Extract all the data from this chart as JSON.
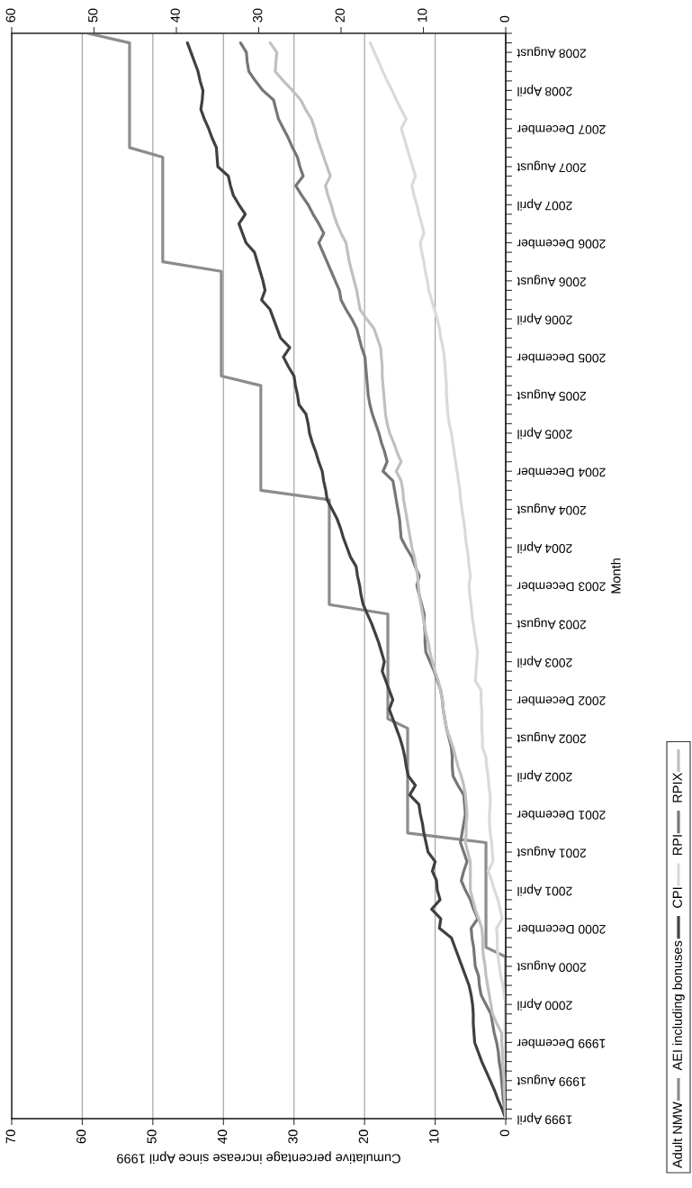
{
  "chart_data": {
    "type": "line",
    "orientation": "horizontal",
    "xlabel": "Cumulative percentage increase since April 1999",
    "ylabel": "Month",
    "categories": [
      null,
      null,
      "2008 August",
      null,
      null,
      null,
      "2008 April",
      null,
      null,
      null,
      "2007 December",
      null,
      null,
      null,
      "2007 August",
      null,
      null,
      null,
      "2007 April",
      null,
      null,
      null,
      "2006 December",
      null,
      null,
      null,
      "2006 August",
      null,
      null,
      null,
      "2006 April",
      null,
      null,
      null,
      "2005 December",
      null,
      null,
      null,
      "2005 August",
      null,
      null,
      null,
      "2005 April",
      null,
      null,
      null,
      "2004 December",
      null,
      null,
      null,
      "2004 August",
      null,
      null,
      null,
      "2004 April",
      null,
      null,
      null,
      "2003 December",
      null,
      null,
      null,
      "2003 August",
      null,
      null,
      null,
      "2003 April",
      null,
      null,
      null,
      "2002 December",
      null,
      null,
      null,
      "2002 August",
      null,
      null,
      null,
      "2002 April",
      null,
      null,
      null,
      "2001 December",
      null,
      null,
      null,
      "2001 August",
      null,
      null,
      null,
      "2001 April",
      null,
      null,
      null,
      "2000 December",
      null,
      null,
      null,
      "2000 August",
      null,
      null,
      null,
      "2000 April",
      null,
      null,
      null,
      "1999 December",
      null,
      null,
      null,
      "1999 August",
      null,
      null,
      null,
      "1999 April"
    ],
    "xlim": [
      70,
      0
    ],
    "xticks": [
      70,
      60,
      50,
      40,
      30,
      20,
      10,
      0
    ],
    "x2lim": [
      60,
      0
    ],
    "x2ticks": [
      60,
      50,
      40,
      30,
      20,
      10,
      0
    ],
    "grid": "x",
    "legend": "right",
    "series": [
      {
        "name": "Adult NMW",
        "color": "#8c8c8c",
        "values": [
          59.2,
          53.3,
          53.3,
          53.3,
          53.3,
          53.3,
          53.3,
          53.3,
          53.3,
          53.3,
          53.3,
          53.3,
          53.3,
          48.6,
          48.6,
          48.6,
          48.6,
          48.6,
          48.6,
          48.6,
          48.6,
          48.6,
          48.6,
          48.6,
          48.6,
          40.3,
          40.3,
          40.3,
          40.3,
          40.3,
          40.3,
          40.3,
          40.3,
          40.3,
          40.3,
          40.3,
          40.3,
          34.7,
          34.7,
          34.7,
          34.7,
          34.7,
          34.7,
          34.7,
          34.7,
          34.7,
          34.7,
          34.7,
          34.7,
          25.0,
          25.0,
          25.0,
          25.0,
          25.0,
          25.0,
          25.0,
          25.0,
          25.0,
          25.0,
          25.0,
          25.0,
          16.7,
          16.7,
          16.7,
          16.7,
          16.7,
          16.7,
          16.7,
          16.7,
          16.7,
          16.7,
          16.7,
          16.7,
          13.9,
          13.9,
          13.9,
          13.9,
          13.9,
          13.9,
          13.9,
          13.9,
          13.9,
          13.9,
          13.9,
          13.9,
          2.8,
          2.8,
          2.8,
          2.8,
          2.8,
          2.8,
          2.8,
          2.8,
          2.8,
          2.8,
          2.8,
          2.8,
          0,
          0,
          0,
          0,
          0,
          0,
          0,
          0,
          0,
          0,
          0,
          0,
          0,
          0,
          0,
          0,
          0,
          0
        ]
      },
      {
        "name": "AEI including bonuses",
        "color": "#404040",
        "values": [
          null,
          45.1,
          44.6,
          44.1,
          43.6,
          43.3,
          42.9,
          43.0,
          43.2,
          42.7,
          42.1,
          41.6,
          41.0,
          40.9,
          40.8,
          39.3,
          39.0,
          38.6,
          37.8,
          36.9,
          37.8,
          37.3,
          36.8,
          35.6,
          35.2,
          34.8,
          34.4,
          34.1,
          34.6,
          33.4,
          32.9,
          32.4,
          31.9,
          30.6,
          31.5,
          30.8,
          30.0,
          29.8,
          29.5,
          29.3,
          28.3,
          28.0,
          27.8,
          27.4,
          26.9,
          26.5,
          26.0,
          25.8,
          25.5,
          25.3,
          24.6,
          23.9,
          23.4,
          23.0,
          22.5,
          22.0,
          21.2,
          21.0,
          20.7,
          20.5,
          20.2,
          19.6,
          19.0,
          18.5,
          18.0,
          17.6,
          17.2,
          17.5,
          17.0,
          16.5,
          16.0,
          16.5,
          16.0,
          15.5,
          15.0,
          14.6,
          14.3,
          14.1,
          13.8,
          12.8,
          13.6,
          12.3,
          12.1,
          11.8,
          11.6,
          11.3,
          11.0,
          10.0,
          10.4,
          9.8,
          9.7,
          9.3,
          10.5,
          9.2,
          9.4,
          7.7,
          7.2,
          6.7,
          6.2,
          5.7,
          5.2,
          4.9,
          4.7,
          4.6,
          4.6,
          4.5,
          4.4,
          3.9,
          3.4,
          2.8,
          2.2,
          1.6,
          1.1,
          0.5,
          0
        ]
      },
      {
        "name": "CPI",
        "color": "#dadada",
        "values": [
          null,
          19.2,
          18.6,
          18.0,
          17.4,
          16.8,
          16.1,
          15.5,
          14.8,
          14.1,
          14.8,
          14.4,
          14.0,
          13.6,
          13.2,
          12.8,
          13.3,
          13.0,
          12.6,
          12.3,
          11.9,
          11.6,
          12.1,
          11.9,
          11.6,
          11.4,
          11.1,
          10.9,
          10.5,
          10.1,
          9.7,
          9.4,
          9.2,
          8.9,
          8.7,
          8.6,
          8.5,
          8.4,
          8.4,
          8.3,
          8.2,
          8.0,
          7.7,
          7.5,
          7.3,
          7.1,
          6.9,
          6.7,
          6.5,
          6.4,
          6.2,
          6.0,
          5.8,
          5.7,
          5.5,
          5.3,
          5.2,
          5.0,
          5.2,
          5.1,
          4.9,
          4.8,
          4.6,
          4.4,
          4.2,
          4.0,
          4.1,
          4.2,
          4.3,
          3.5,
          3.5,
          3.4,
          3.4,
          3.4,
          3.3,
          3.3,
          2.8,
          2.7,
          2.5,
          2.4,
          2.2,
          2.2,
          2.3,
          2.3,
          2.2,
          2.0,
          1.9,
          1.8,
          2.5,
          2.0,
          1.6,
          1.1,
          0.8,
          0.5,
          1.3,
          1.2,
          1.2,
          1.1,
          0.9,
          0.7,
          0.4,
          0.2,
          0,
          0,
          0.1,
          0.1,
          0.1,
          0.1,
          0.1,
          0.1,
          0,
          0,
          0,
          0,
          0
        ]
      },
      {
        "name": "RPI",
        "color": "#767676",
        "axis": "x2",
        "values": [
          null,
          32.2,
          31.5,
          31.4,
          31.2,
          30.4,
          29.5,
          28.2,
          27.9,
          27.6,
          27.0,
          26.4,
          25.9,
          25.3,
          25.0,
          24.6,
          25.5,
          24.8,
          24.0,
          23.4,
          22.7,
          22.1,
          22.7,
          22.2,
          21.7,
          21.2,
          20.7,
          20.2,
          20.0,
          19.4,
          18.7,
          18.1,
          17.8,
          17.5,
          17.1,
          17.0,
          16.9,
          16.8,
          16.7,
          16.5,
          16.2,
          15.8,
          15.4,
          15.1,
          14.7,
          14.4,
          14.9,
          13.7,
          13.5,
          13.3,
          13.1,
          12.9,
          12.8,
          12.7,
          12.1,
          11.4,
          11.0,
          10.5,
          10.8,
          10.5,
          10.2,
          9.9,
          9.9,
          9.8,
          9.8,
          9.7,
          9.2,
          8.7,
          8.3,
          7.9,
          7.7,
          7.6,
          7.4,
          7.2,
          6.9,
          6.6,
          6.5,
          6.5,
          6.4,
          5.8,
          5.1,
          5.0,
          4.9,
          5.1,
          5.3,
          5.5,
          5.1,
          4.7,
          5.1,
          5.4,
          4.9,
          4.3,
          3.9,
          3.4,
          4.2,
          4.1,
          3.9,
          3.8,
          3.7,
          3.3,
          3.2,
          3.0,
          2.4,
          1.8,
          1.6,
          1.4,
          1.1,
          0.9,
          0.8,
          0.6,
          0.5,
          0.4,
          0.3,
          0.1,
          0
        ]
      },
      {
        "name": "RPIX",
        "color": "#c0c0c0",
        "axis": "x2",
        "values": [
          null,
          28.6,
          27.8,
          27.9,
          28.0,
          27.0,
          25.9,
          24.9,
          24.3,
          23.6,
          23.2,
          22.9,
          22.5,
          22.1,
          21.7,
          21.3,
          21.9,
          21.6,
          21.2,
          20.9,
          20.5,
          20.0,
          19.4,
          19.2,
          19.0,
          18.7,
          18.4,
          18.1,
          17.9,
          17.7,
          16.9,
          16.0,
          15.6,
          15.2,
          15.1,
          15.0,
          15.0,
          14.9,
          14.8,
          14.7,
          14.6,
          14.4,
          14.1,
          13.6,
          13.2,
          12.7,
          13.3,
          12.7,
          12.5,
          12.4,
          12.2,
          12.0,
          11.8,
          11.6,
          11.4,
          11.1,
          10.9,
          10.7,
          10.6,
          10.5,
          10.3,
          10.1,
          9.9,
          9.7,
          9.4,
          9.2,
          8.9,
          8.6,
          8.2,
          7.9,
          7.7,
          7.6,
          7.4,
          7.2,
          6.8,
          6.4,
          6.1,
          5.8,
          5.4,
          5.1,
          4.9,
          4.8,
          4.7,
          4.8,
          4.8,
          4.9,
          4.6,
          4.3,
          4.3,
          4.3,
          4.3,
          4.0,
          3.7,
          3.3,
          2.9,
          2.8,
          2.8,
          2.7,
          2.5,
          2.4,
          2.2,
          2.0,
          1.8,
          1.6,
          1.1,
          0.5,
          0.5,
          0.4,
          0.4,
          0.3,
          0.2,
          0.2,
          0.1,
          0.1,
          0
        ]
      }
    ]
  }
}
